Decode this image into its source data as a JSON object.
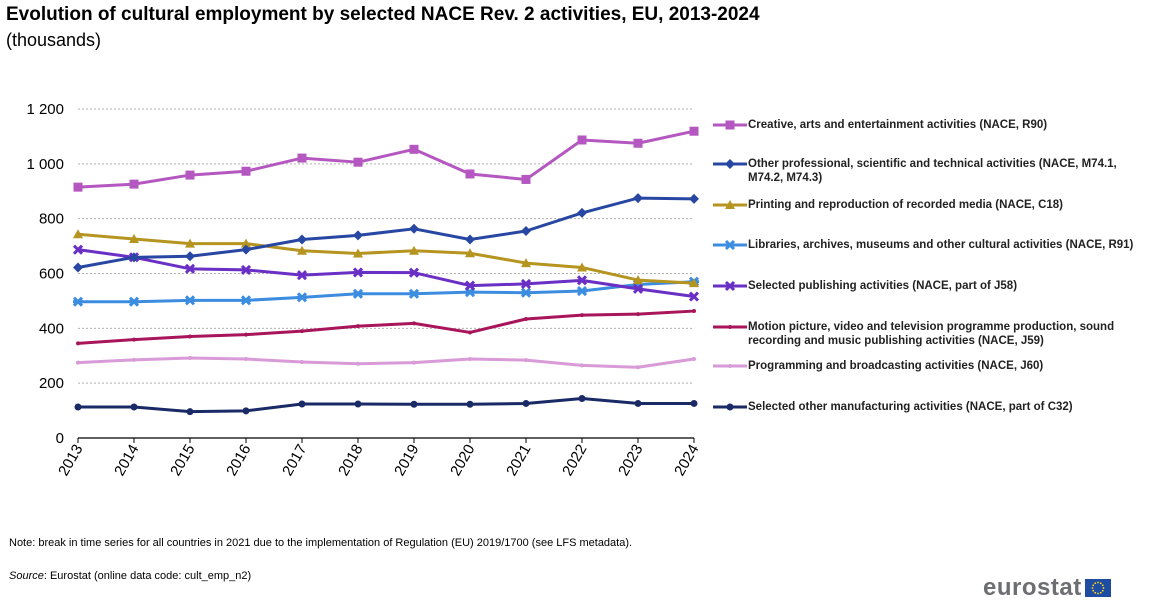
{
  "header": {
    "title": "Evolution of cultural employment by selected NACE Rev. 2 activities, EU, 2013-2024",
    "subtitle": "(thousands)"
  },
  "footer": {
    "note": "Note: break in time series for all countries in 2021 due to the implementation of Regulation (EU) 2019/1700 (see LFS metadata).",
    "source_label": "Source",
    "source_text": ": Eurostat (online data code: cult_emp_n2)",
    "logo_text": "eurostat"
  },
  "chart_data": {
    "type": "line",
    "title": "Evolution of cultural employment by selected NACE Rev. 2 activities, EU, 2013-2024",
    "subtitle": "(thousands)",
    "xlabel": "",
    "ylabel": "",
    "x": [
      "2013",
      "2014",
      "2015",
      "2016",
      "2017",
      "2018",
      "2019",
      "2020",
      "2021",
      "2022",
      "2023",
      "2024"
    ],
    "ylim": [
      0,
      1200
    ],
    "yticks": [
      0,
      200,
      400,
      600,
      800,
      1000,
      1200
    ],
    "ytick_labels": [
      "0",
      "200",
      "400",
      "600",
      "800",
      "1 000",
      "1 200"
    ],
    "grid": "horizontal dashed",
    "legend_position": "right",
    "series": [
      {
        "name": "Creative, arts and entertainment activities (NACE, R90)",
        "color": "#b557c0",
        "marker": "square",
        "values": [
          915,
          926,
          959,
          973,
          1021,
          1006,
          1053,
          963,
          943,
          1087,
          1075,
          1119
        ]
      },
      {
        "name": "Other professional, scientific and technical activities (NACE, M74.1, M74.2, M74.3)",
        "color": "#2847a3",
        "marker": "diamond",
        "values": [
          622,
          659,
          663,
          687,
          724,
          739,
          763,
          724,
          755,
          821,
          875,
          872
        ]
      },
      {
        "name": "Printing and reproduction of recorded media (NACE, C18)",
        "color": "#b59420",
        "marker": "triangle",
        "values": [
          743,
          726,
          709,
          709,
          683,
          673,
          683,
          674,
          638,
          622,
          576,
          565
        ]
      },
      {
        "name": "Libraries, archives, museums and other cultural activities (NACE, R91)",
        "color": "#3c8de0",
        "marker": "star",
        "values": [
          497,
          497,
          502,
          502,
          513,
          526,
          526,
          532,
          530,
          536,
          560,
          570
        ]
      },
      {
        "name": "Selected publishing activities (NACE, part of J58)",
        "color": "#6a2fc4",
        "marker": "x",
        "values": [
          687,
          659,
          617,
          613,
          594,
          604,
          603,
          556,
          562,
          575,
          544,
          516
        ]
      },
      {
        "name": "Motion picture, video and television programme production, sound recording and music publishing activities (NACE, J59)",
        "color": "#a8155a",
        "marker": "dash",
        "values": [
          345,
          359,
          370,
          377,
          390,
          408,
          418,
          385,
          434,
          448,
          452,
          463
        ]
      },
      {
        "name": "Programming and broadcasting activities (NACE, J60)",
        "color": "#d99ad8",
        "marker": "dash",
        "values": [
          275,
          285,
          292,
          288,
          277,
          271,
          275,
          288,
          284,
          265,
          258,
          288
        ]
      },
      {
        "name": "Selected other manufacturing activities (NACE, part of C32)",
        "color": "#1a2a66",
        "marker": "circle",
        "values": [
          113,
          113,
          96,
          99,
          124,
          124,
          123,
          123,
          126,
          144,
          126,
          126
        ]
      }
    ]
  }
}
